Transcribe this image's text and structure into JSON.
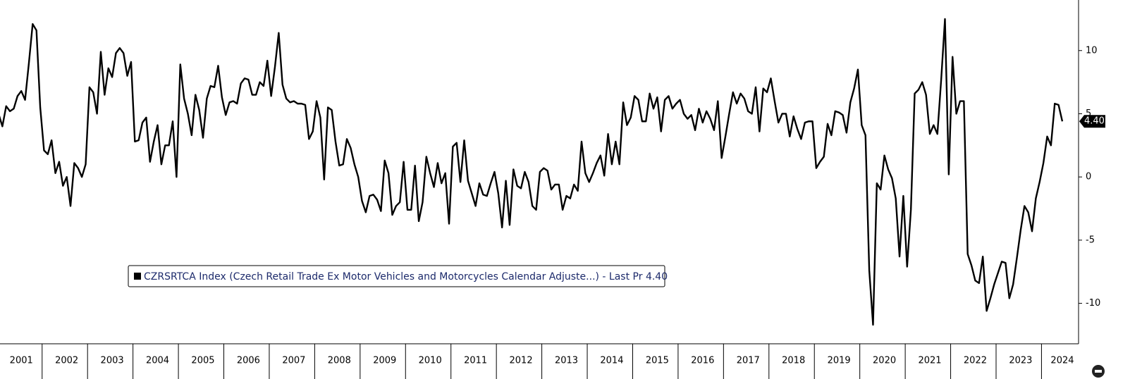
{
  "chart_data": {
    "type": "line",
    "categories": [
      null,
      null,
      null,
      null,
      null,
      null,
      "2001",
      null,
      null,
      null,
      null,
      null,
      null,
      null,
      null,
      null,
      null,
      null,
      "2002",
      null,
      null,
      null,
      null,
      null,
      null,
      null,
      null,
      null,
      null,
      null,
      "2003",
      null,
      null,
      null,
      null,
      null,
      null,
      null,
      null,
      null,
      null,
      null,
      "2004",
      null,
      null,
      null,
      null,
      null,
      null,
      null,
      null,
      null,
      null,
      null,
      "2005",
      null,
      null,
      null,
      null,
      null,
      null,
      null,
      null,
      null,
      null,
      null,
      "2006",
      null,
      null,
      null,
      null,
      null,
      null,
      null,
      null,
      null,
      null,
      null,
      "2007",
      null,
      null,
      null,
      null,
      null,
      null,
      null,
      null,
      null,
      null,
      null,
      "2008",
      null,
      null,
      null,
      null,
      null,
      null,
      null,
      null,
      null,
      null,
      null,
      "2009",
      null,
      null,
      null,
      null,
      null,
      null,
      null,
      null,
      null,
      null,
      null,
      "2010",
      null,
      null,
      null,
      null,
      null,
      null,
      null,
      null,
      null,
      null,
      null,
      "2011",
      null,
      null,
      null,
      null,
      null,
      null,
      null,
      null,
      null,
      null,
      null,
      "2012",
      null,
      null,
      null,
      null,
      null,
      null,
      null,
      null,
      null,
      null,
      null,
      "2013",
      null,
      null,
      null,
      null,
      null,
      null,
      null,
      null,
      null,
      null,
      null,
      "2014",
      null,
      null,
      null,
      null,
      null,
      null,
      null,
      null,
      null,
      null,
      null,
      "2015",
      null,
      null,
      null,
      null,
      null,
      null,
      null,
      null,
      null,
      null,
      null,
      "2016",
      null,
      null,
      null,
      null,
      null,
      null,
      null,
      null,
      null,
      null,
      null,
      "2017",
      null,
      null,
      null,
      null,
      null,
      null,
      null,
      null,
      null,
      null,
      null,
      "2018",
      null,
      null,
      null,
      null,
      null,
      null,
      null,
      null,
      null,
      null,
      null,
      "2019",
      null,
      null,
      null,
      null,
      null,
      null,
      null,
      null,
      null,
      null,
      null,
      "2020",
      null,
      null,
      null,
      null,
      null,
      null,
      null,
      null,
      null,
      null,
      null,
      "2021",
      null,
      null,
      null,
      null,
      null,
      null,
      null,
      null,
      null,
      null,
      null,
      "2022",
      null,
      null,
      null,
      null,
      null,
      null,
      null,
      null,
      null,
      null,
      null,
      "2023",
      null,
      null,
      null,
      null,
      null,
      null,
      null,
      null,
      null,
      null,
      "2024"
    ],
    "series": [
      {
        "name": "CZRSRTCA Index (Czech Retail Trade Ex Motor Vehicles and Motorcycles Calendar Adjuste...) - Last Pr 4.40",
        "color": "#000000",
        "values": [
          5,
          4,
          5.6,
          5.2,
          5.4,
          6.4,
          6.8,
          6.1,
          9,
          12.1,
          11.6,
          5.5,
          2.1,
          1.8,
          2.9,
          0.3,
          1.2,
          -0.7,
          0,
          -2.3,
          1.1,
          0.7,
          0,
          1,
          7.1,
          6.7,
          5,
          9.9,
          6.5,
          8.6,
          7.9,
          9.8,
          10.2,
          9.8,
          8,
          9.1,
          2.8,
          2.9,
          4.3,
          4.7,
          1.2,
          2.8,
          4.1,
          1,
          2.5,
          2.5,
          4.4,
          0,
          8.9,
          6.2,
          5,
          3.3,
          6.5,
          5.3,
          3.1,
          6.2,
          7.2,
          7.1,
          8.8,
          6.3,
          4.9,
          5.9,
          6,
          5.8,
          7.4,
          7.8,
          7.7,
          6.5,
          6.5,
          7.5,
          7.2,
          9.2,
          6.4,
          8.7,
          11.4,
          7.3,
          6.2,
          5.9,
          6,
          5.8,
          5.8,
          5.7,
          3,
          3.6,
          6,
          4.7,
          -0.2,
          5.5,
          5.3,
          2.8,
          0.9,
          1,
          3,
          2.3,
          1,
          0,
          -1.9,
          -2.8,
          -1.5,
          -1.4,
          -1.8,
          -2.7,
          1.3,
          0.3,
          -3,
          -2.3,
          -2,
          1.2,
          -2.6,
          -2.6,
          0.9,
          -3.5,
          -2,
          1.6,
          0.3,
          -0.8,
          1.1,
          -0.5,
          0.3,
          -3.7,
          2.4,
          2.7,
          -0.4,
          2.9,
          -0.3,
          -1.3,
          -2.3,
          -0.5,
          -1.4,
          -1.5,
          -0.5,
          0.4,
          -1.3,
          -4,
          -0.3,
          -3.8,
          0.6,
          -0.7,
          -0.9,
          0.4,
          -0.4,
          -2.3,
          -2.6,
          0.4,
          0.7,
          0.5,
          -1,
          -0.6,
          -0.6,
          -2.6,
          -1.5,
          -1.7,
          -0.6,
          -1.1,
          2.8,
          0.3,
          -0.4,
          0.3,
          1.1,
          1.7,
          0.1,
          3.4,
          1,
          2.8,
          1,
          5.9,
          4.1,
          4.7,
          6.4,
          6.1,
          4.4,
          4.4,
          6.6,
          5.4,
          6.3,
          3.6,
          6.1,
          6.4,
          5.4,
          5.8,
          6.1,
          5,
          4.6,
          4.9,
          3.7,
          5.4,
          4.3,
          5.2,
          4.6,
          3.7,
          6,
          1.5,
          3.2,
          5,
          6.7,
          5.8,
          6.6,
          6.2,
          5.2,
          5,
          7.1,
          3.6,
          7,
          6.7,
          7.8,
          6,
          4.3,
          5,
          5,
          3.2,
          4.8,
          3.8,
          3,
          4.3,
          4.4,
          4.4,
          0.7,
          1.2,
          1.6,
          4.2,
          3.3,
          5.2,
          5.1,
          4.9,
          3.5,
          5.9,
          7,
          8.5,
          4.1,
          3.3,
          -7.4,
          -11.7,
          -0.5,
          -1,
          1.7,
          0.6,
          -0.1,
          -1.7,
          -6.3,
          -1.5,
          -7.1,
          -2.6,
          6.6,
          6.9,
          7.5,
          6.5,
          3.4,
          4.1,
          3.4,
          7.7,
          12.5,
          0.2,
          9.5,
          5,
          6,
          6,
          -6.1,
          -7,
          -8.2,
          -8.4,
          -6.3,
          -10.6,
          -9.6,
          -8.5,
          -7.6,
          -6.7,
          -6.8,
          -9.6,
          -8.5,
          -6.4,
          -4.2,
          -2.3,
          -2.8,
          -4.3,
          -1.7,
          -0.4,
          1.1,
          3.2,
          2.5,
          5.8,
          5.7,
          4.4
        ]
      }
    ],
    "last_price": {
      "value": 4.4,
      "label": "4.40"
    },
    "ylim": [
      -13.2,
      14
    ],
    "yticks": [
      -10,
      -5,
      0,
      5,
      10
    ],
    "grid": false
  }
}
